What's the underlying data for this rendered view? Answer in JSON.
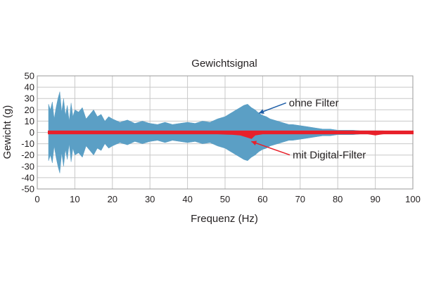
{
  "chart_data": {
    "type": "area",
    "title": "Gewichtsignal",
    "xlabel": "Frequenz (Hz)",
    "ylabel": "Gewicht (g)",
    "xlim": [
      0,
      100
    ],
    "ylim": [
      -50,
      50
    ],
    "x_ticks": [
      0,
      10,
      20,
      30,
      40,
      50,
      60,
      70,
      80,
      90,
      100
    ],
    "y_ticks": [
      50,
      40,
      30,
      20,
      10,
      0,
      -10,
      -20,
      -30,
      -40,
      -50
    ],
    "grid": true,
    "series": [
      {
        "name": "ohne Filter",
        "color": "#5b9fc5",
        "x": [
          3,
          3.5,
          4,
          4.5,
          5,
          5.5,
          6,
          6.5,
          7,
          7.5,
          8,
          8.5,
          9,
          9.5,
          10,
          11,
          12,
          13,
          14,
          15,
          16,
          17,
          18,
          19,
          20,
          22,
          24,
          26,
          28,
          30,
          32,
          34,
          36,
          38,
          40,
          42,
          44,
          46,
          48,
          50,
          51,
          52,
          53,
          54,
          55,
          56,
          57,
          58,
          59,
          60,
          61,
          62,
          63,
          64,
          65,
          66,
          67,
          68,
          70,
          72,
          74,
          76,
          78,
          80,
          82,
          84,
          86,
          88,
          90,
          92,
          94,
          96,
          98,
          100
        ],
        "upper": [
          25,
          20,
          27,
          12,
          22,
          30,
          36,
          18,
          30,
          15,
          24,
          10,
          26,
          14,
          20,
          18,
          22,
          12,
          16,
          20,
          14,
          16,
          10,
          14,
          12,
          9,
          11,
          8,
          10,
          8,
          7,
          9,
          7,
          8,
          9,
          8,
          10,
          9,
          12,
          14,
          16,
          18,
          20,
          22,
          24,
          25,
          22,
          20,
          17,
          15,
          14,
          12,
          11,
          10,
          9,
          8,
          7,
          7,
          6,
          5,
          4,
          3,
          3,
          2,
          2,
          2,
          1.5,
          1.5,
          1.5,
          1.5,
          1,
          1,
          1,
          1
        ],
        "lower": [
          -25,
          -20,
          -27,
          -12,
          -22,
          -30,
          -36,
          -18,
          -30,
          -15,
          -24,
          -10,
          -26,
          -14,
          -20,
          -18,
          -22,
          -12,
          -16,
          -20,
          -14,
          -16,
          -10,
          -14,
          -12,
          -9,
          -11,
          -8,
          -10,
          -8,
          -7,
          -9,
          -7,
          -8,
          -9,
          -8,
          -10,
          -9,
          -12,
          -14,
          -16,
          -18,
          -20,
          -22,
          -24,
          -25,
          -22,
          -20,
          -17,
          -15,
          -14,
          -12,
          -11,
          -10,
          -9,
          -8,
          -7,
          -7,
          -6,
          -5,
          -4,
          -3,
          -3,
          -2,
          -2,
          -2,
          -1.5,
          -1.5,
          -1.5,
          -1.5,
          -1,
          -1,
          -1,
          -1
        ]
      },
      {
        "name": "mit Digital-Filter",
        "color": "#e8202a",
        "x": [
          3,
          10,
          20,
          30,
          40,
          48,
          52,
          54,
          55,
          56,
          57,
          58,
          60,
          64,
          70,
          80,
          88,
          89,
          90,
          91,
          92,
          100
        ],
        "upper": [
          1,
          1,
          1,
          1,
          1,
          1,
          1,
          1,
          1,
          1,
          1,
          1,
          1,
          1,
          1,
          1,
          1,
          1,
          1,
          1,
          1,
          1
        ],
        "lower": [
          -1,
          -1,
          -1,
          -1,
          -1,
          -1,
          -1.5,
          -2,
          -3,
          -4,
          -5,
          -2,
          -1,
          -1,
          -1,
          -1,
          -1,
          -1.5,
          -2,
          -1.5,
          -1,
          -1
        ]
      }
    ],
    "annotations": [
      {
        "text": "ohne Filter",
        "x": 67,
        "y": 23,
        "arrow_to": [
          59,
          17
        ]
      },
      {
        "text": "mit Digital-Filter",
        "x": 68,
        "y": -23,
        "arrow_to": [
          57,
          -8
        ]
      }
    ]
  }
}
